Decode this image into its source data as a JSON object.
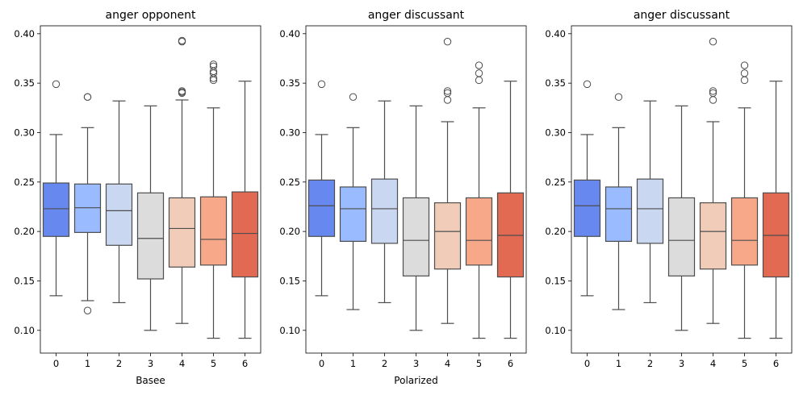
{
  "chart_data": [
    {
      "type": "box",
      "title": "anger opponent",
      "xlabel": "Basee",
      "ylabel": "",
      "categories": [
        "0",
        "1",
        "2",
        "3",
        "4",
        "5",
        "6"
      ],
      "ylim": [
        0.077,
        0.408
      ],
      "yticks": [
        "0.10",
        "0.15",
        "0.20",
        "0.25",
        "0.30",
        "0.35",
        "0.40"
      ],
      "colors": [
        "#6788ee",
        "#9abbff",
        "#c9d7f0",
        "#dddcdc",
        "#f1ccb8",
        "#f7a889",
        "#e26952"
      ],
      "boxes": [
        {
          "whisker_low": 0.135,
          "q1": 0.195,
          "median": 0.223,
          "q3": 0.249,
          "whisker_high": 0.298,
          "outliers": [
            0.349
          ]
        },
        {
          "whisker_low": 0.13,
          "q1": 0.199,
          "median": 0.224,
          "q3": 0.248,
          "whisker_high": 0.305,
          "outliers": [
            0.12,
            0.336,
            0.336
          ]
        },
        {
          "whisker_low": 0.128,
          "q1": 0.186,
          "median": 0.221,
          "q3": 0.248,
          "whisker_high": 0.332,
          "outliers": []
        },
        {
          "whisker_low": 0.1,
          "q1": 0.152,
          "median": 0.193,
          "q3": 0.239,
          "whisker_high": 0.327,
          "outliers": []
        },
        {
          "whisker_low": 0.107,
          "q1": 0.164,
          "median": 0.203,
          "q3": 0.234,
          "whisker_high": 0.333,
          "outliers": [
            0.34,
            0.341,
            0.342,
            0.392,
            0.393
          ]
        },
        {
          "whisker_low": 0.092,
          "q1": 0.166,
          "median": 0.192,
          "q3": 0.235,
          "whisker_high": 0.325,
          "outliers": [
            0.353,
            0.355,
            0.36,
            0.362,
            0.367,
            0.369
          ]
        },
        {
          "whisker_low": 0.092,
          "q1": 0.154,
          "median": 0.198,
          "q3": 0.24,
          "whisker_high": 0.352,
          "outliers": []
        }
      ]
    },
    {
      "type": "box",
      "title": "anger discussant",
      "xlabel": "Polarized",
      "ylabel": "",
      "categories": [
        "0",
        "1",
        "2",
        "3",
        "4",
        "5",
        "6"
      ],
      "ylim": [
        0.077,
        0.408
      ],
      "yticks": [
        "0.10",
        "0.15",
        "0.20",
        "0.25",
        "0.30",
        "0.35",
        "0.40"
      ],
      "colors": [
        "#6788ee",
        "#9abbff",
        "#c9d7f0",
        "#dddcdc",
        "#f1ccb8",
        "#f7a889",
        "#e26952"
      ],
      "boxes": [
        {
          "whisker_low": 0.135,
          "q1": 0.195,
          "median": 0.226,
          "q3": 0.252,
          "whisker_high": 0.298,
          "outliers": [
            0.349
          ]
        },
        {
          "whisker_low": 0.121,
          "q1": 0.19,
          "median": 0.223,
          "q3": 0.245,
          "whisker_high": 0.305,
          "outliers": [
            0.336
          ]
        },
        {
          "whisker_low": 0.128,
          "q1": 0.188,
          "median": 0.223,
          "q3": 0.253,
          "whisker_high": 0.332,
          "outliers": []
        },
        {
          "whisker_low": 0.1,
          "q1": 0.155,
          "median": 0.191,
          "q3": 0.234,
          "whisker_high": 0.327,
          "outliers": []
        },
        {
          "whisker_low": 0.107,
          "q1": 0.162,
          "median": 0.2,
          "q3": 0.229,
          "whisker_high": 0.311,
          "outliers": [
            0.333,
            0.34,
            0.342,
            0.392
          ]
        },
        {
          "whisker_low": 0.092,
          "q1": 0.166,
          "median": 0.191,
          "q3": 0.234,
          "whisker_high": 0.325,
          "outliers": [
            0.353,
            0.36,
            0.368
          ]
        },
        {
          "whisker_low": 0.092,
          "q1": 0.154,
          "median": 0.196,
          "q3": 0.239,
          "whisker_high": 0.352,
          "outliers": []
        }
      ]
    },
    {
      "type": "box",
      "title": "anger discussant",
      "xlabel": "",
      "ylabel": "",
      "categories": [
        "0",
        "1",
        "2",
        "3",
        "4",
        "5",
        "6"
      ],
      "ylim": [
        0.077,
        0.408
      ],
      "yticks": [
        "0.10",
        "0.15",
        "0.20",
        "0.25",
        "0.30",
        "0.35",
        "0.40"
      ],
      "colors": [
        "#6788ee",
        "#9abbff",
        "#c9d7f0",
        "#dddcdc",
        "#f1ccb8",
        "#f7a889",
        "#e26952"
      ],
      "boxes": [
        {
          "whisker_low": 0.135,
          "q1": 0.195,
          "median": 0.226,
          "q3": 0.252,
          "whisker_high": 0.298,
          "outliers": [
            0.349
          ]
        },
        {
          "whisker_low": 0.121,
          "q1": 0.19,
          "median": 0.223,
          "q3": 0.245,
          "whisker_high": 0.305,
          "outliers": [
            0.336
          ]
        },
        {
          "whisker_low": 0.128,
          "q1": 0.188,
          "median": 0.223,
          "q3": 0.253,
          "whisker_high": 0.332,
          "outliers": []
        },
        {
          "whisker_low": 0.1,
          "q1": 0.155,
          "median": 0.191,
          "q3": 0.234,
          "whisker_high": 0.327,
          "outliers": []
        },
        {
          "whisker_low": 0.107,
          "q1": 0.162,
          "median": 0.2,
          "q3": 0.229,
          "whisker_high": 0.311,
          "outliers": [
            0.333,
            0.34,
            0.342,
            0.392
          ]
        },
        {
          "whisker_low": 0.092,
          "q1": 0.166,
          "median": 0.191,
          "q3": 0.234,
          "whisker_high": 0.325,
          "outliers": [
            0.353,
            0.36,
            0.368
          ]
        },
        {
          "whisker_low": 0.092,
          "q1": 0.154,
          "median": 0.196,
          "q3": 0.239,
          "whisker_high": 0.352,
          "outliers": []
        }
      ]
    }
  ]
}
